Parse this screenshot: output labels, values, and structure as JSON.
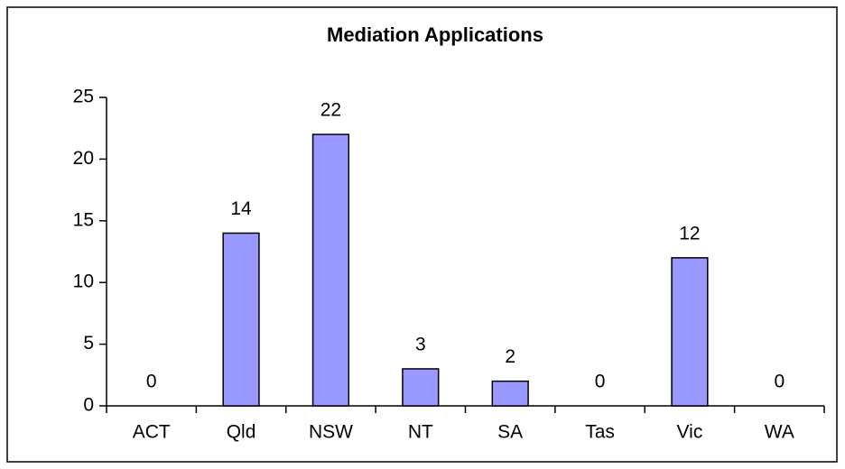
{
  "chart_data": {
    "type": "bar",
    "title": "Mediation Applications",
    "categories": [
      "ACT",
      "Qld",
      "NSW",
      "NT",
      "SA",
      "Tas",
      "Vic",
      "WA"
    ],
    "values": [
      0,
      14,
      22,
      3,
      2,
      0,
      12,
      0
    ],
    "color": "#9999ff",
    "ylim": [
      0,
      25
    ],
    "yticks": [
      0,
      5,
      10,
      15,
      20,
      25
    ],
    "grid": false
  }
}
